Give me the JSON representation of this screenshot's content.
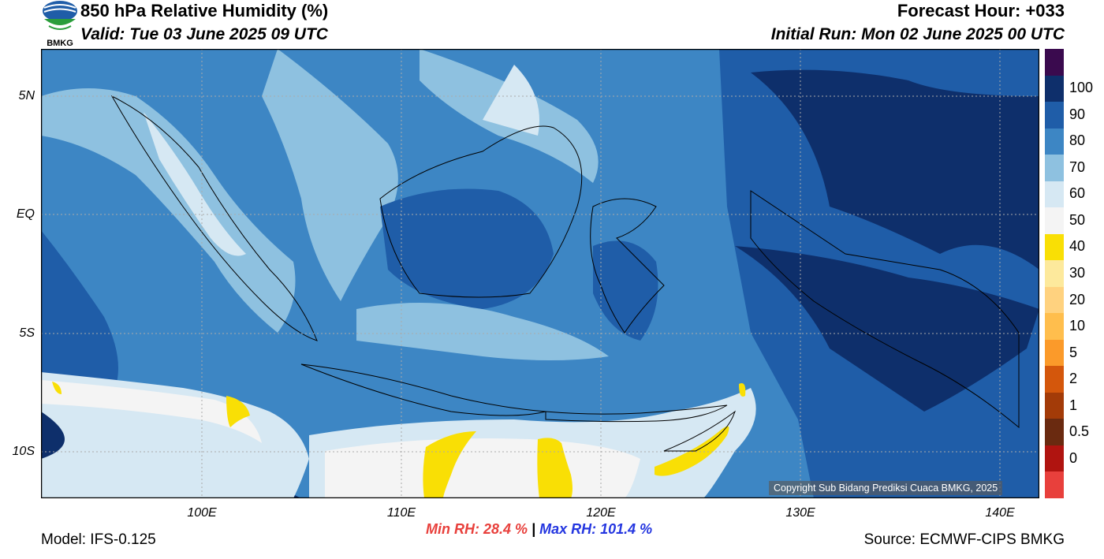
{
  "header": {
    "title": "850 hPa Relative Humidity (%)",
    "valid": "Valid: Tue 03 June 2025 09 UTC",
    "forecast_hour": "Forecast Hour: +033",
    "initial_run": "Initial Run: Mon 02 June 2025 00 UTC",
    "logo_text": "BMKG"
  },
  "map": {
    "lat_labels": [
      "5N",
      "EQ",
      "5S",
      "10S"
    ],
    "lon_labels": [
      "100E",
      "110E",
      "120E",
      "130E",
      "140E"
    ],
    "copyright": "Copyright Sub Bidang Prediksi Cuaca BMKG, 2025"
  },
  "colorbar": {
    "labels": [
      "100",
      "90",
      "80",
      "70",
      "60",
      "50",
      "40",
      "30",
      "20",
      "10",
      "5",
      "2",
      "1",
      "0.5",
      "0"
    ],
    "colors": [
      "#3a0a4e",
      "#0e2f6b",
      "#1f5da8",
      "#3d86c4",
      "#8ec1e0",
      "#d6e8f3",
      "#f4f4f4",
      "#f9df05",
      "#fde99c",
      "#ffd27f",
      "#ffbe4d",
      "#fb9a2a",
      "#d4570c",
      "#a33b08",
      "#6a2a10",
      "#b01410",
      "#e8403c"
    ]
  },
  "footer": {
    "model": "Model: IFS-0.125",
    "min_rh": "Min RH:  28.4 %",
    "separator": "|",
    "max_rh": "Max RH: 101.4 %",
    "source": "Source: ECMWF-CIPS BMKG"
  }
}
